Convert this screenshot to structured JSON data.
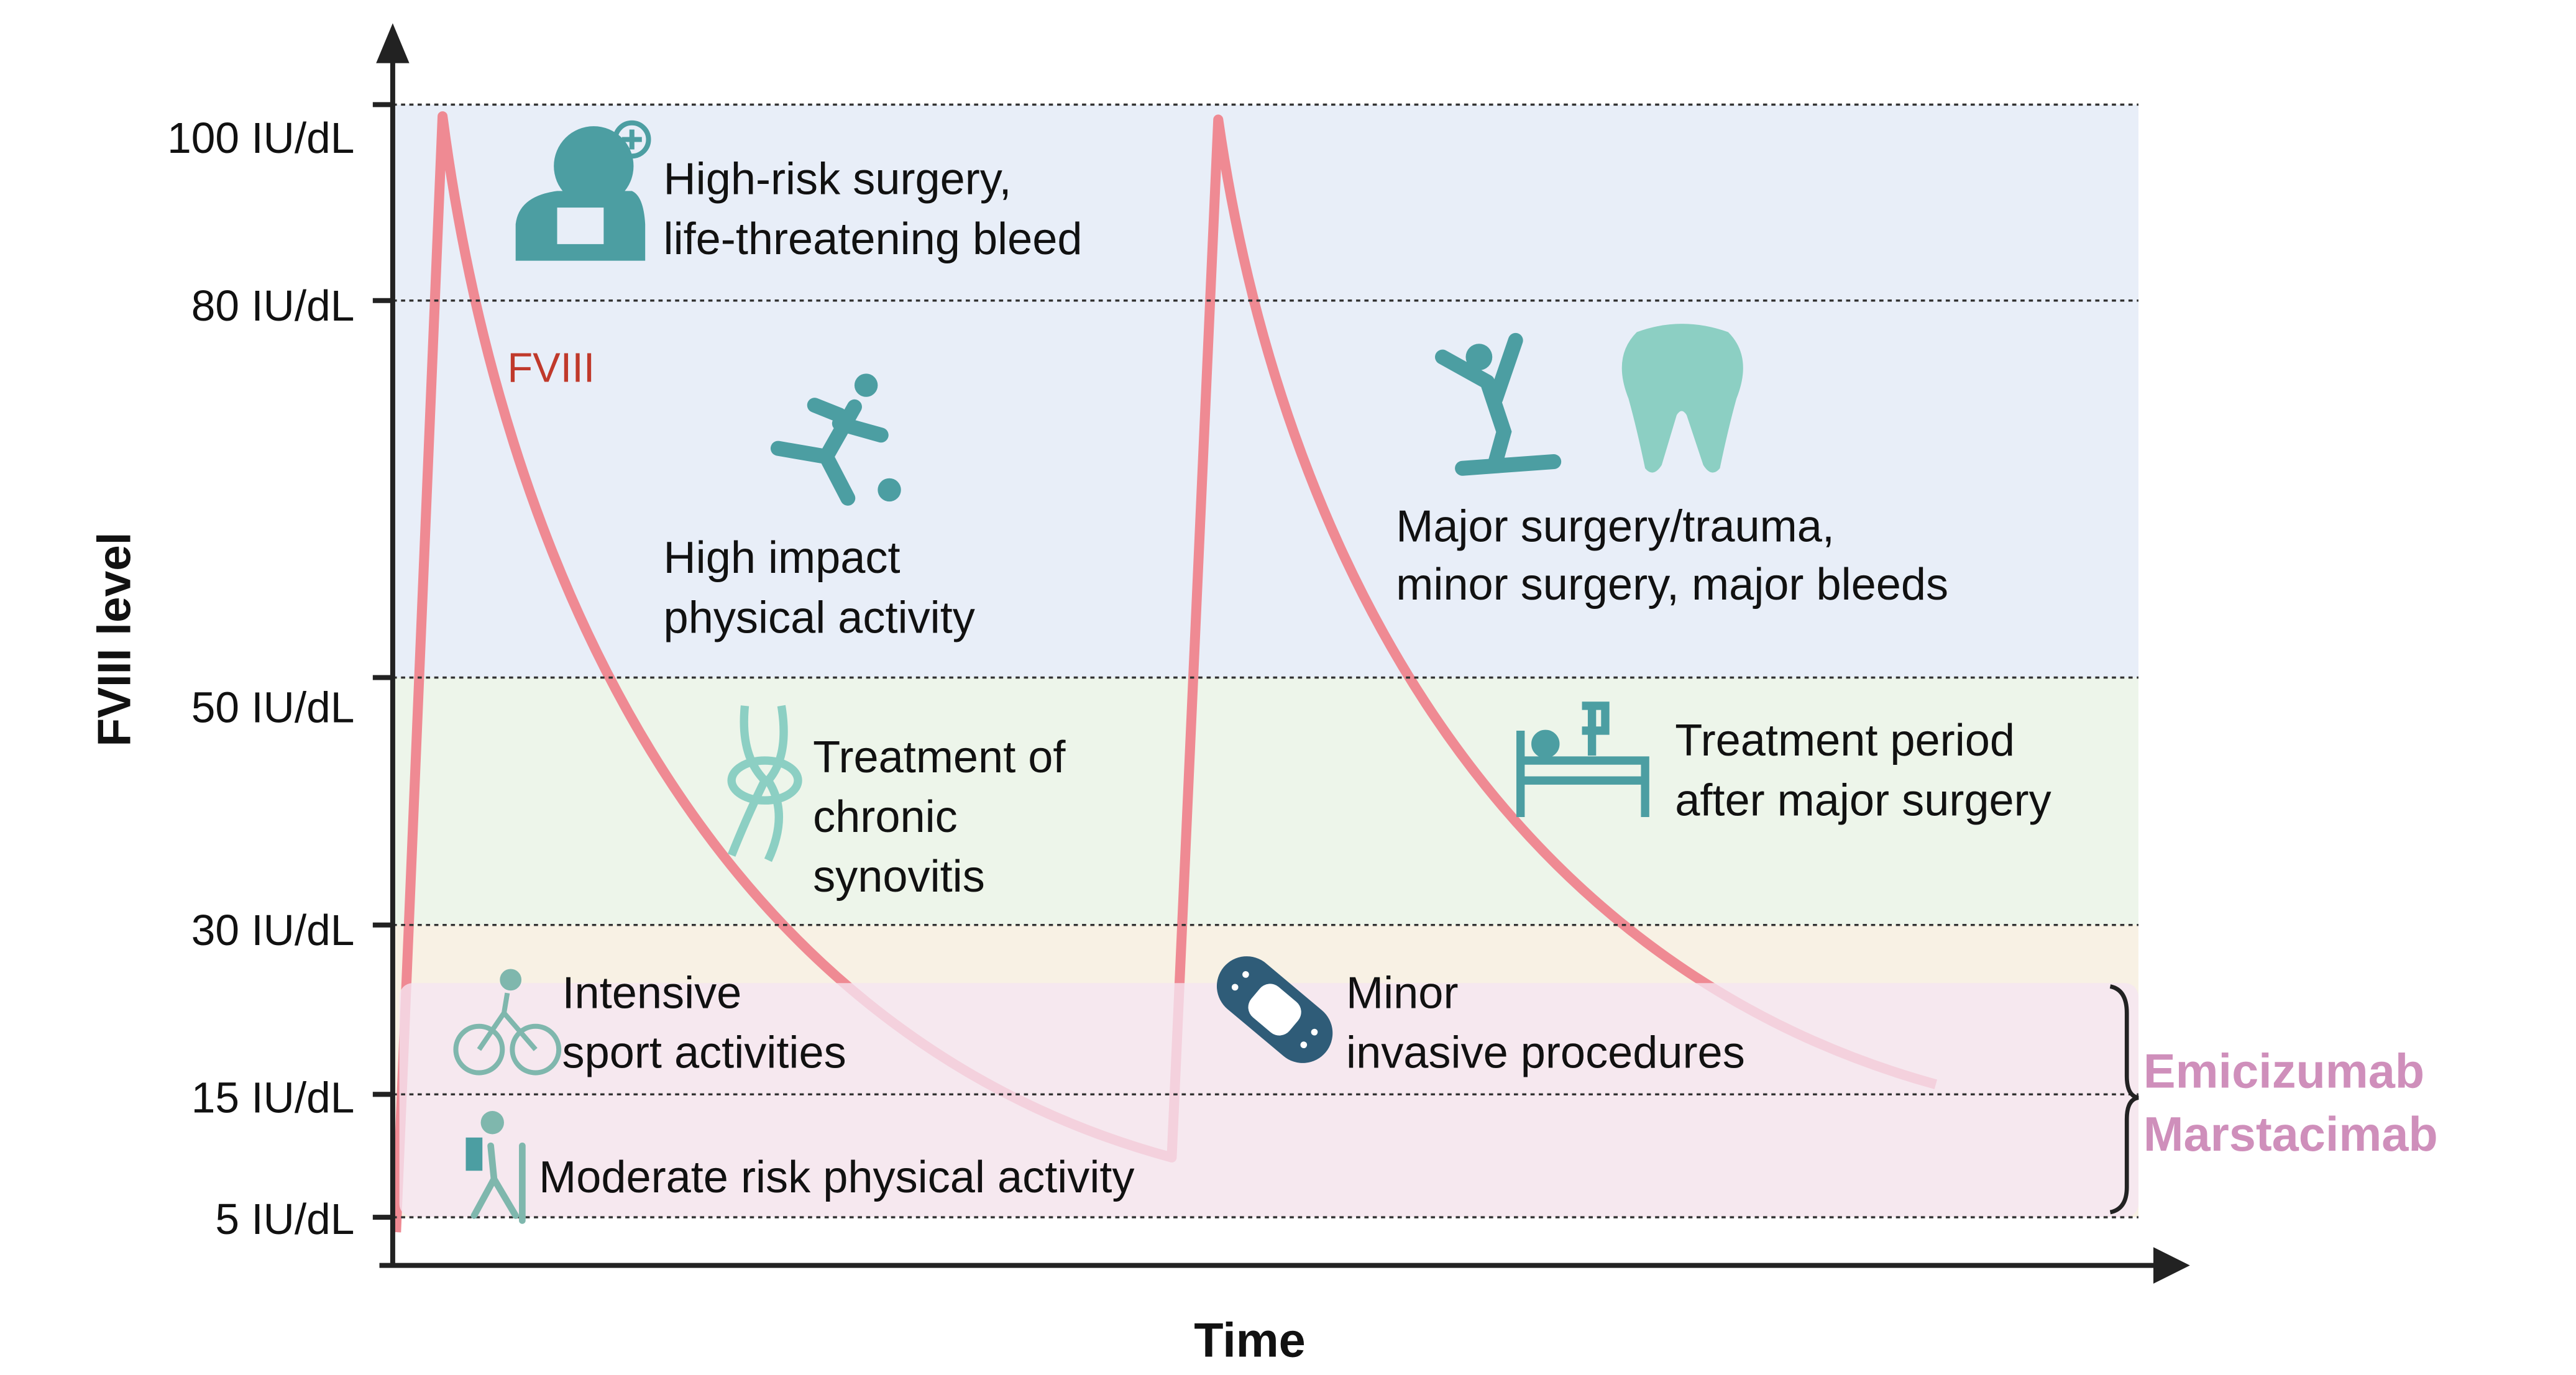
{
  "axes": {
    "y_label": "FVIII level",
    "x_label": "Time",
    "y_ticks": [
      "100 IU/dL",
      "80 IU/dL",
      "50 IU/dL",
      "30 IU/dL",
      "15 IU/dL",
      "5 IU/dL"
    ]
  },
  "curve_label": "FVIII",
  "annotations": {
    "high_risk": [
      "High-risk surgery,",
      "life-threatening bleed"
    ],
    "high_impact": [
      "High impact",
      "physical activity"
    ],
    "major_surgery": [
      "Major surgery/trauma,",
      "minor surgery, major bleeds"
    ],
    "synovitis": [
      "Treatment of",
      "chronic",
      "synovitis"
    ],
    "post_surgery": [
      "Treatment period",
      "after major surgery"
    ],
    "intensive": [
      "Intensive",
      "sport activities"
    ],
    "minor": [
      "Minor",
      "invasive procedures"
    ],
    "moderate": [
      "Moderate risk physical activity"
    ]
  },
  "bracket_labels": [
    "Emicizumab",
    "Marstacimab"
  ],
  "colors": {
    "band_blue": "#e8eef8",
    "band_green": "#edf5ea",
    "band_orange": "#f8f1e4",
    "band_pink": "#f5e6f2",
    "curve": "#ef8a93",
    "icon_teal": "#4c9ea2",
    "bandage": "#2f5c78",
    "bracket_text": "#cf8fbb",
    "fviii_text": "#c0392b"
  }
}
